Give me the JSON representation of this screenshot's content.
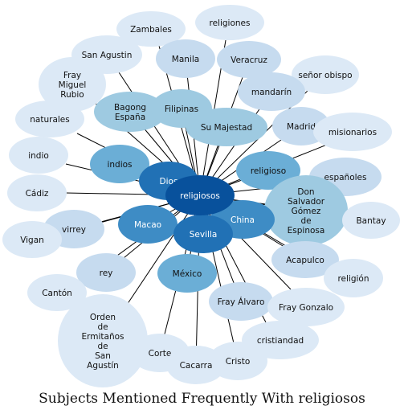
{
  "caption": "Subjects Mentioned Frequently With religiosos",
  "colors": {
    "edge": "#000000",
    "light": "#dce9f6",
    "pale": "#c6dbef",
    "mid": "#9ecae1",
    "medium": "#6baed6",
    "strong": "#3e8cc5",
    "deep": "#2171b5",
    "center": "#08519c",
    "text_dark": "#111111",
    "text_light": "#ffffff"
  },
  "center_node": "religiosos",
  "nodes": [
    {
      "label": "Zambales",
      "tone": "light"
    },
    {
      "label": "religiones",
      "tone": "light"
    },
    {
      "label": "San Agustin",
      "tone": "light"
    },
    {
      "label": "Manila",
      "tone": "pale"
    },
    {
      "label": "Veracruz",
      "tone": "pale"
    },
    {
      "label": "señor obispo",
      "tone": "light"
    },
    {
      "label": "Fray Miguel Rubio",
      "tone": "light"
    },
    {
      "label": "mandarín",
      "tone": "pale"
    },
    {
      "label": "Bagong España",
      "tone": "mid"
    },
    {
      "label": "Filipinas",
      "tone": "mid"
    },
    {
      "label": "Su Majestad",
      "tone": "mid"
    },
    {
      "label": "Madrid",
      "tone": "pale"
    },
    {
      "label": "misionarios",
      "tone": "light"
    },
    {
      "label": "naturales",
      "tone": "light"
    },
    {
      "label": "indio",
      "tone": "light"
    },
    {
      "label": "indios",
      "tone": "medium"
    },
    {
      "label": "Dios",
      "tone": "deep"
    },
    {
      "label": "religioso",
      "tone": "medium"
    },
    {
      "label": "españoles",
      "tone": "pale"
    },
    {
      "label": "Cádiz",
      "tone": "light"
    },
    {
      "label": "Don Salvador Gómez de Espinosa",
      "tone": "mid"
    },
    {
      "label": "Bantay",
      "tone": "light"
    },
    {
      "label": "China",
      "tone": "strong"
    },
    {
      "label": "virrey",
      "tone": "pale"
    },
    {
      "label": "Macao",
      "tone": "strong"
    },
    {
      "label": "Vigan",
      "tone": "light"
    },
    {
      "label": "Sevilla",
      "tone": "deep"
    },
    {
      "label": "Acapulco",
      "tone": "pale"
    },
    {
      "label": "rey",
      "tone": "pale"
    },
    {
      "label": "religión",
      "tone": "light"
    },
    {
      "label": "México",
      "tone": "medium"
    },
    {
      "label": "Cantón",
      "tone": "light"
    },
    {
      "label": "Fray Álvaro",
      "tone": "pale"
    },
    {
      "label": "Fray Gonzalo",
      "tone": "light"
    },
    {
      "label": "Orden de Ermitaños de San Agustín",
      "tone": "light"
    },
    {
      "label": "cristiandad",
      "tone": "light"
    },
    {
      "label": "Corte",
      "tone": "light"
    },
    {
      "label": "Cristo",
      "tone": "light"
    },
    {
      "label": "Cacarra",
      "tone": "light"
    }
  ]
}
